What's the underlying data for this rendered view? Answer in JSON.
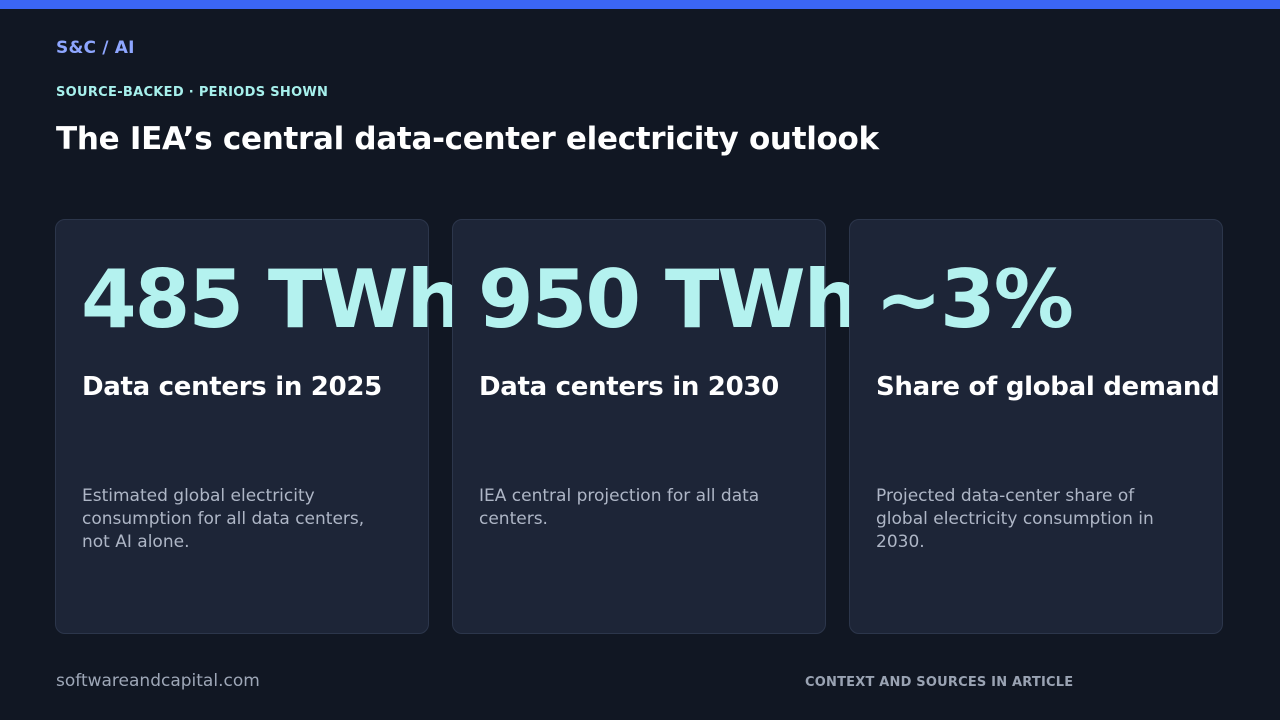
{
  "colors": {
    "background": "#111723",
    "accent_bar": "#3b66f5",
    "brand": "#8ea6ff",
    "eyebrow": "#a7f0ec",
    "stat_value": "#b4f2ef",
    "card_background": "#1d2537"
  },
  "header": {
    "brand": "S&C / AI",
    "eyebrow": "SOURCE-BACKED · PERIODS SHOWN",
    "title": "The IEA’s central data-center electricity outlook"
  },
  "cards": [
    {
      "value": "485 TWh",
      "label": "Data centers in 2025",
      "description": "Estimated global electricity consumption for all data centers, not AI alone."
    },
    {
      "value": "950 TWh",
      "label": "Data centers in 2030",
      "description": "IEA central projection for all data centers."
    },
    {
      "value": "~3%",
      "label": "Share of global demand",
      "description": "Projected data-center share of global electricity consumption in 2030."
    }
  ],
  "footer": {
    "site": "softwareandcapital.com",
    "note": "CONTEXT AND SOURCES IN ARTICLE"
  }
}
